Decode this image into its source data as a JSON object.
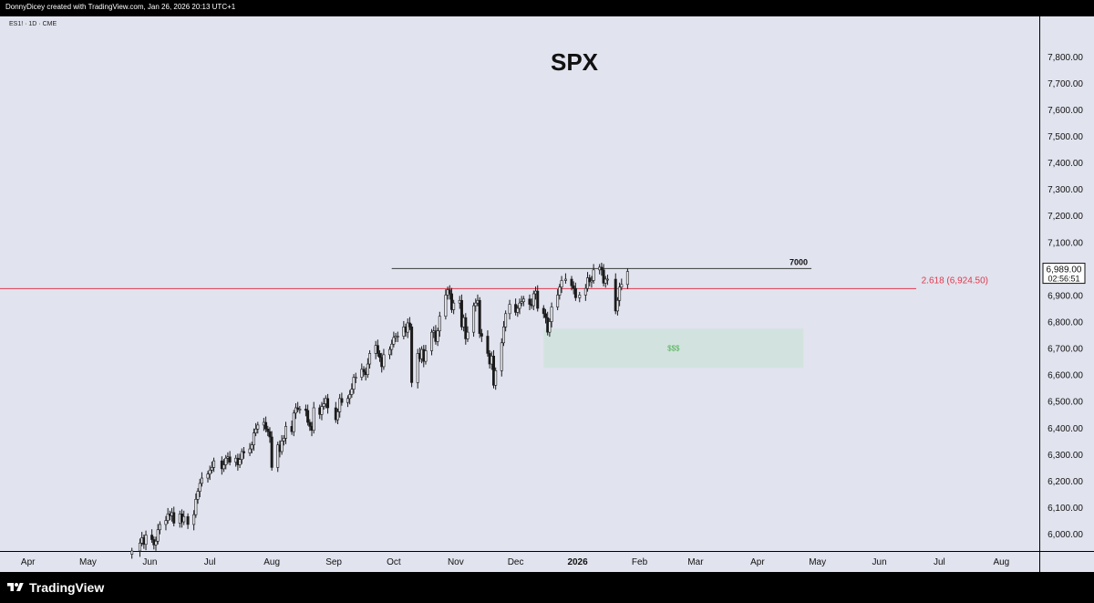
{
  "credit": "DonnyDicey created with TradingView.com, Jan 26, 2026 20:13 UTC+1",
  "symbol_label": "ES1! · 1D · CME",
  "brand": "TradingView",
  "chart_data": {
    "type": "candlestick",
    "title": "SPX",
    "yaxis_ticks": [
      6000,
      6100,
      6200,
      6300,
      6400,
      6500,
      6600,
      6700,
      6800,
      6900,
      7000,
      7100,
      7200,
      7300,
      7400,
      7500,
      7600,
      7700,
      7800
    ],
    "yaxis_tick_labels": [
      "6,000.00",
      "6,100.00",
      "6,200.00",
      "6,300.00",
      "6,400.00",
      "6,500.00",
      "6,600.00",
      "6,700.00",
      "6,800.00",
      "6,900.00",
      "7,000.00",
      "7,100.00",
      "7,200.00",
      "7,300.00",
      "7,400.00",
      "7,500.00",
      "7,600.00",
      "7,700.00",
      "7,800.00"
    ],
    "ylim": [
      5935,
      7875
    ],
    "x_range": [
      "2025-03-18",
      "2026-08-20"
    ],
    "xaxis_labels": [
      {
        "label": "Apr",
        "date": "2025-04-01",
        "bold": false
      },
      {
        "label": "May",
        "date": "2025-05-01",
        "bold": false
      },
      {
        "label": "Jun",
        "date": "2025-06-01",
        "bold": false
      },
      {
        "label": "Jul",
        "date": "2025-07-01",
        "bold": false
      },
      {
        "label": "Aug",
        "date": "2025-08-01",
        "bold": false
      },
      {
        "label": "Sep",
        "date": "2025-09-01",
        "bold": false
      },
      {
        "label": "Oct",
        "date": "2025-10-01",
        "bold": false
      },
      {
        "label": "Nov",
        "date": "2025-11-01",
        "bold": false
      },
      {
        "label": "Dec",
        "date": "2025-12-01",
        "bold": false
      },
      {
        "label": "2026",
        "date": "2026-01-01",
        "bold": true
      },
      {
        "label": "Feb",
        "date": "2026-02-01",
        "bold": false
      },
      {
        "label": "Mar",
        "date": "2026-03-01",
        "bold": false
      },
      {
        "label": "Apr",
        "date": "2026-04-01",
        "bold": false
      },
      {
        "label": "May",
        "date": "2026-05-01",
        "bold": false
      },
      {
        "label": "Jun",
        "date": "2026-06-01",
        "bold": false
      },
      {
        "label": "Jul",
        "date": "2026-07-01",
        "bold": false
      },
      {
        "label": "Aug",
        "date": "2026-08-01",
        "bold": false
      }
    ],
    "last_price": {
      "value": 6989.0,
      "label": "6,989.00",
      "countdown": "02:56:51"
    },
    "fib_level": {
      "ratio": "2.618",
      "value": 6924.5,
      "label": "2.618 (6,924.50)",
      "color": "#e0394c"
    },
    "horizontal_level": {
      "value": 7000,
      "label": "7000",
      "from": "2025-09-30",
      "to": "2026-04-28",
      "color": "#3a3a3a"
    },
    "zone": {
      "label": "$$$",
      "from": "2025-12-15",
      "to": "2026-04-24",
      "top": 6773,
      "bottom": 6626,
      "fill": "#cfe3dc",
      "text_color": "#4caf50"
    },
    "series": [
      {
        "date": "2025-05-23",
        "value": 5935
      },
      {
        "date": "2025-05-27",
        "value": 5965
      },
      {
        "date": "2025-05-28",
        "value": 5985
      },
      {
        "date": "2025-05-29",
        "value": 5960
      },
      {
        "date": "2025-05-30",
        "value": 5995
      },
      {
        "date": "2025-06-02",
        "value": 5978
      },
      {
        "date": "2025-06-03",
        "value": 5958
      },
      {
        "date": "2025-06-04",
        "value": 5972
      },
      {
        "date": "2025-06-05",
        "value": 6015
      },
      {
        "date": "2025-06-06",
        "value": 6035
      },
      {
        "date": "2025-06-09",
        "value": 6050
      },
      {
        "date": "2025-06-10",
        "value": 6075
      },
      {
        "date": "2025-06-11",
        "value": 6068
      },
      {
        "date": "2025-06-12",
        "value": 6080
      },
      {
        "date": "2025-06-13",
        "value": 6040
      },
      {
        "date": "2025-06-16",
        "value": 6075
      },
      {
        "date": "2025-06-17",
        "value": 6045
      },
      {
        "date": "2025-06-18",
        "value": 6065
      },
      {
        "date": "2025-06-20",
        "value": 6035
      },
      {
        "date": "2025-06-23",
        "value": 6072
      },
      {
        "date": "2025-06-24",
        "value": 6130
      },
      {
        "date": "2025-06-25",
        "value": 6160
      },
      {
        "date": "2025-06-26",
        "value": 6190
      },
      {
        "date": "2025-06-27",
        "value": 6210
      },
      {
        "date": "2025-06-30",
        "value": 6225
      },
      {
        "date": "2025-07-01",
        "value": 6240
      },
      {
        "date": "2025-07-02",
        "value": 6250
      },
      {
        "date": "2025-07-03",
        "value": 6275
      },
      {
        "date": "2025-07-07",
        "value": 6245
      },
      {
        "date": "2025-07-08",
        "value": 6260
      },
      {
        "date": "2025-07-09",
        "value": 6285
      },
      {
        "date": "2025-07-10",
        "value": 6290
      },
      {
        "date": "2025-07-11",
        "value": 6270
      },
      {
        "date": "2025-07-14",
        "value": 6285
      },
      {
        "date": "2025-07-15",
        "value": 6260
      },
      {
        "date": "2025-07-16",
        "value": 6280
      },
      {
        "date": "2025-07-17",
        "value": 6310
      },
      {
        "date": "2025-07-18",
        "value": 6305
      },
      {
        "date": "2025-07-21",
        "value": 6320
      },
      {
        "date": "2025-07-22",
        "value": 6335
      },
      {
        "date": "2025-07-23",
        "value": 6380
      },
      {
        "date": "2025-07-24",
        "value": 6395
      },
      {
        "date": "2025-07-25",
        "value": 6410
      },
      {
        "date": "2025-07-28",
        "value": 6420
      },
      {
        "date": "2025-07-29",
        "value": 6395
      },
      {
        "date": "2025-07-30",
        "value": 6385
      },
      {
        "date": "2025-07-31",
        "value": 6365
      },
      {
        "date": "2025-08-01",
        "value": 6250
      },
      {
        "date": "2025-08-04",
        "value": 6335
      },
      {
        "date": "2025-08-05",
        "value": 6310
      },
      {
        "date": "2025-08-06",
        "value": 6350
      },
      {
        "date": "2025-08-07",
        "value": 6360
      },
      {
        "date": "2025-08-08",
        "value": 6405
      },
      {
        "date": "2025-08-11",
        "value": 6385
      },
      {
        "date": "2025-08-12",
        "value": 6455
      },
      {
        "date": "2025-08-13",
        "value": 6475
      },
      {
        "date": "2025-08-14",
        "value": 6470
      },
      {
        "date": "2025-08-15",
        "value": 6470
      },
      {
        "date": "2025-08-18",
        "value": 6465
      },
      {
        "date": "2025-08-19",
        "value": 6420
      },
      {
        "date": "2025-08-20",
        "value": 6405
      },
      {
        "date": "2025-08-21",
        "value": 6390
      },
      {
        "date": "2025-08-22",
        "value": 6475
      },
      {
        "date": "2025-08-25",
        "value": 6450
      },
      {
        "date": "2025-08-26",
        "value": 6480
      },
      {
        "date": "2025-08-27",
        "value": 6490
      },
      {
        "date": "2025-08-28",
        "value": 6510
      },
      {
        "date": "2025-08-29",
        "value": 6475
      },
      {
        "date": "2025-09-02",
        "value": 6430
      },
      {
        "date": "2025-09-03",
        "value": 6460
      },
      {
        "date": "2025-09-04",
        "value": 6510
      },
      {
        "date": "2025-09-05",
        "value": 6495
      },
      {
        "date": "2025-09-08",
        "value": 6510
      },
      {
        "date": "2025-09-09",
        "value": 6525
      },
      {
        "date": "2025-09-10",
        "value": 6545
      },
      {
        "date": "2025-09-11",
        "value": 6590
      },
      {
        "date": "2025-09-12",
        "value": 6590
      },
      {
        "date": "2025-09-15",
        "value": 6620
      },
      {
        "date": "2025-09-16",
        "value": 6610
      },
      {
        "date": "2025-09-17",
        "value": 6600
      },
      {
        "date": "2025-09-18",
        "value": 6640
      },
      {
        "date": "2025-09-19",
        "value": 6680
      },
      {
        "date": "2025-09-22",
        "value": 6710
      },
      {
        "date": "2025-09-23",
        "value": 6680
      },
      {
        "date": "2025-09-24",
        "value": 6665
      },
      {
        "date": "2025-09-25",
        "value": 6630
      },
      {
        "date": "2025-09-26",
        "value": 6675
      },
      {
        "date": "2025-09-29",
        "value": 6695
      },
      {
        "date": "2025-09-30",
        "value": 6715
      },
      {
        "date": "2025-10-01",
        "value": 6740
      },
      {
        "date": "2025-10-02",
        "value": 6745
      },
      {
        "date": "2025-10-03",
        "value": 6745
      },
      {
        "date": "2025-10-06",
        "value": 6780
      },
      {
        "date": "2025-10-07",
        "value": 6760
      },
      {
        "date": "2025-10-08",
        "value": 6795
      },
      {
        "date": "2025-10-09",
        "value": 6780
      },
      {
        "date": "2025-10-10",
        "value": 6570
      },
      {
        "date": "2025-10-13",
        "value": 6680
      },
      {
        "date": "2025-10-14",
        "value": 6660
      },
      {
        "date": "2025-10-15",
        "value": 6695
      },
      {
        "date": "2025-10-16",
        "value": 6650
      },
      {
        "date": "2025-10-17",
        "value": 6690
      },
      {
        "date": "2025-10-20",
        "value": 6760
      },
      {
        "date": "2025-10-21",
        "value": 6765
      },
      {
        "date": "2025-10-22",
        "value": 6725
      },
      {
        "date": "2025-10-23",
        "value": 6765
      },
      {
        "date": "2025-10-24",
        "value": 6820
      },
      {
        "date": "2025-10-27",
        "value": 6900
      },
      {
        "date": "2025-10-28",
        "value": 6920
      },
      {
        "date": "2025-10-29",
        "value": 6905
      },
      {
        "date": "2025-10-30",
        "value": 6845
      },
      {
        "date": "2025-10-31",
        "value": 6870
      },
      {
        "date": "2025-11-03",
        "value": 6880
      },
      {
        "date": "2025-11-04",
        "value": 6780
      },
      {
        "date": "2025-11-05",
        "value": 6815
      },
      {
        "date": "2025-11-06",
        "value": 6735
      },
      {
        "date": "2025-11-07",
        "value": 6760
      },
      {
        "date": "2025-11-10",
        "value": 6860
      },
      {
        "date": "2025-11-11",
        "value": 6870
      },
      {
        "date": "2025-11-12",
        "value": 6880
      },
      {
        "date": "2025-11-13",
        "value": 6755
      },
      {
        "date": "2025-11-14",
        "value": 6745
      },
      {
        "date": "2025-11-17",
        "value": 6680
      },
      {
        "date": "2025-11-18",
        "value": 6640
      },
      {
        "date": "2025-11-19",
        "value": 6670
      },
      {
        "date": "2025-11-20",
        "value": 6560
      },
      {
        "date": "2025-11-21",
        "value": 6615
      },
      {
        "date": "2025-11-24",
        "value": 6720
      },
      {
        "date": "2025-11-25",
        "value": 6780
      },
      {
        "date": "2025-11-26",
        "value": 6830
      },
      {
        "date": "2025-11-28",
        "value": 6865
      },
      {
        "date": "2025-12-01",
        "value": 6835
      },
      {
        "date": "2025-12-02",
        "value": 6850
      },
      {
        "date": "2025-12-03",
        "value": 6870
      },
      {
        "date": "2025-12-04",
        "value": 6875
      },
      {
        "date": "2025-12-05",
        "value": 6885
      },
      {
        "date": "2025-12-08",
        "value": 6865
      },
      {
        "date": "2025-12-09",
        "value": 6860
      },
      {
        "date": "2025-12-10",
        "value": 6905
      },
      {
        "date": "2025-12-11",
        "value": 6915
      },
      {
        "date": "2025-12-12",
        "value": 6850
      },
      {
        "date": "2025-12-15",
        "value": 6830
      },
      {
        "date": "2025-12-16",
        "value": 6815
      },
      {
        "date": "2025-12-17",
        "value": 6760
      },
      {
        "date": "2025-12-18",
        "value": 6800
      },
      {
        "date": "2025-12-19",
        "value": 6855
      },
      {
        "date": "2025-12-22",
        "value": 6900
      },
      {
        "date": "2025-12-23",
        "value": 6930
      },
      {
        "date": "2025-12-24",
        "value": 6955
      },
      {
        "date": "2025-12-26",
        "value": 6960
      },
      {
        "date": "2025-12-29",
        "value": 6935
      },
      {
        "date": "2025-12-30",
        "value": 6925
      },
      {
        "date": "2025-12-31",
        "value": 6890
      },
      {
        "date": "2026-01-02",
        "value": 6900
      },
      {
        "date": "2026-01-05",
        "value": 6925
      },
      {
        "date": "2026-01-06",
        "value": 6965
      },
      {
        "date": "2026-01-07",
        "value": 6950
      },
      {
        "date": "2026-01-08",
        "value": 6955
      },
      {
        "date": "2026-01-09",
        "value": 6995
      },
      {
        "date": "2026-01-12",
        "value": 7005
      },
      {
        "date": "2026-01-13",
        "value": 6995
      },
      {
        "date": "2026-01-14",
        "value": 6945
      },
      {
        "date": "2026-01-15",
        "value": 6960
      },
      {
        "date": "2026-01-16",
        "value": 6960
      },
      {
        "date": "2026-01-20",
        "value": 6840
      },
      {
        "date": "2026-01-21",
        "value": 6880
      },
      {
        "date": "2026-01-22",
        "value": 6930
      },
      {
        "date": "2026-01-23",
        "value": 6940
      },
      {
        "date": "2026-01-26",
        "value": 6989
      }
    ]
  }
}
